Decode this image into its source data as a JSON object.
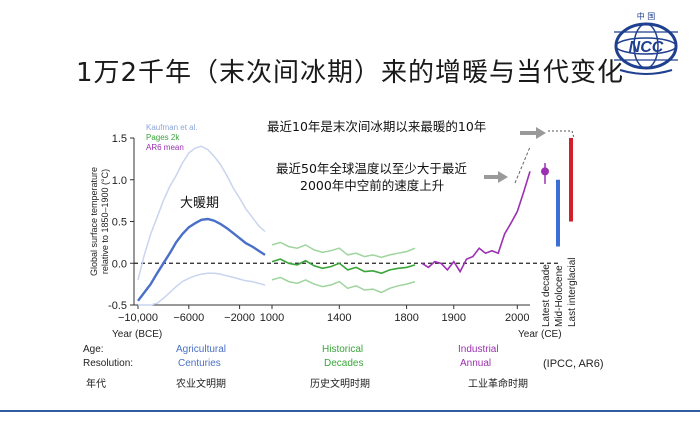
{
  "slide": {
    "title": "1万2千年（末次间冰期）来的增暖与当代变化",
    "logo_text": "NCC",
    "logo_top_text": "中 国"
  },
  "chart_data": {
    "type": "line",
    "ylabel": "Global surface temperature relative to 1850–1900 (°C)",
    "ylim": [
      -0.5,
      1.5
    ],
    "yticks": [
      "1.5",
      "1.0",
      "0.5",
      "0.0",
      "-0.5"
    ],
    "legend": [
      {
        "name": "Kaufman et al.",
        "color": "#8fa6d8"
      },
      {
        "name": "Pages 2k",
        "color": "#3aa53a"
      },
      {
        "name": "AR6 mean",
        "color": "#9b30b0"
      }
    ],
    "panels": [
      {
        "name": "Agricultural Centuries",
        "xlim": [
          -10000,
          0
        ],
        "xticks": [
          "−10,000",
          "−6000",
          "−2000"
        ],
        "xtick_values": [
          -10000,
          -6000,
          -2000
        ],
        "xlabel": "Year (BCE)",
        "resolution": "Agricultural Centuries",
        "era": "农业文明期",
        "series": [
          {
            "name": "Kaufman et al.",
            "x": [
              -10000,
              -9500,
              -9000,
              -8500,
              -8000,
              -7500,
              -7000,
              -6500,
              -6000,
              -5500,
              -5000,
              -4500,
              -4000,
              -3500,
              -3000,
              -2500,
              -2000,
              -1500,
              -1000,
              -500,
              0
            ],
            "mean": [
              -0.45,
              -0.35,
              -0.25,
              -0.12,
              0.0,
              0.12,
              0.25,
              0.35,
              0.43,
              0.48,
              0.52,
              0.53,
              0.51,
              0.47,
              0.42,
              0.36,
              0.3,
              0.24,
              0.2,
              0.15,
              0.1
            ],
            "upper": [
              -0.2,
              0.1,
              0.35,
              0.55,
              0.75,
              0.92,
              1.05,
              1.2,
              1.32,
              1.38,
              1.4,
              1.36,
              1.28,
              1.18,
              1.05,
              0.9,
              0.78,
              0.65,
              0.55,
              0.45,
              0.38
            ],
            "lower": [
              -0.5,
              -0.5,
              -0.5,
              -0.48,
              -0.42,
              -0.35,
              -0.28,
              -0.22,
              -0.18,
              -0.15,
              -0.13,
              -0.12,
              -0.12,
              -0.13,
              -0.15,
              -0.17,
              -0.19,
              -0.21,
              -0.22,
              -0.24,
              -0.26
            ]
          }
        ]
      },
      {
        "name": "Historical Decades",
        "xlim": [
          1000,
          1850
        ],
        "xticks": [
          "1000",
          "1400",
          "1800"
        ],
        "xtick_values": [
          1000,
          1400,
          1800
        ],
        "xlabel": "",
        "resolution": "Historical Decades",
        "era": "历史文明时期",
        "series": [
          {
            "name": "Pages 2k",
            "x": [
              1000,
              1050,
              1100,
              1150,
              1200,
              1250,
              1300,
              1350,
              1400,
              1450,
              1500,
              1550,
              1600,
              1650,
              1700,
              1750,
              1800,
              1850
            ],
            "mean": [
              0.02,
              0.05,
              0.0,
              -0.02,
              0.03,
              -0.03,
              -0.06,
              -0.04,
              0.0,
              -0.08,
              -0.05,
              -0.1,
              -0.09,
              -0.12,
              -0.08,
              -0.06,
              -0.05,
              -0.02
            ],
            "upper": [
              0.22,
              0.25,
              0.2,
              0.18,
              0.22,
              0.16,
              0.13,
              0.15,
              0.18,
              0.1,
              0.12,
              0.08,
              0.1,
              0.07,
              0.1,
              0.12,
              0.14,
              0.18
            ],
            "lower": [
              -0.2,
              -0.17,
              -0.22,
              -0.24,
              -0.2,
              -0.25,
              -0.28,
              -0.26,
              -0.22,
              -0.3,
              -0.27,
              -0.32,
              -0.31,
              -0.35,
              -0.3,
              -0.27,
              -0.25,
              -0.22
            ]
          }
        ]
      },
      {
        "name": "Industrial Annual",
        "xlim": [
          1850,
          2020
        ],
        "xticks": [
          "1900",
          "2000"
        ],
        "xtick_values": [
          1900,
          2000
        ],
        "xlabel": "Year (CE)",
        "resolution": "Industrial Annual",
        "era": "工业革命时期",
        "series": [
          {
            "name": "AR6 mean",
            "x": [
              1850,
              1860,
              1870,
              1880,
              1890,
              1900,
              1910,
              1920,
              1930,
              1940,
              1950,
              1960,
              1970,
              1980,
              1990,
              2000,
              2010,
              2020
            ],
            "mean": [
              0.0,
              -0.05,
              0.02,
              0.0,
              -0.08,
              0.02,
              -0.1,
              0.05,
              0.08,
              0.18,
              0.12,
              0.15,
              0.12,
              0.35,
              0.48,
              0.62,
              0.85,
              1.1
            ]
          }
        ]
      }
    ],
    "side_bars": [
      {
        "name": "Latest decade",
        "value": 1.1,
        "range": [
          0.95,
          1.2
        ],
        "color": "#9b30b0"
      },
      {
        "name": "Mid-Holocene",
        "range": [
          0.2,
          1.0
        ],
        "color": "#3b6fd6"
      },
      {
        "name": "Last interglacial",
        "range": [
          0.5,
          1.5
        ],
        "color": "#d21f2b"
      }
    ],
    "annotations": {
      "warm_period": "大暖期",
      "latest_decade": "最近10年是末次间冰期以来最暖的10年",
      "rate_line1": "最近50年全球温度以至少大于最近",
      "rate_line2": "2000年中空前的速度上升"
    },
    "row_labels": {
      "age": "Age:",
      "resolution": "Resolution:",
      "era": "年代"
    },
    "source": "(IPCC, AR6)"
  },
  "colors": {
    "title": "#1a1a1a",
    "blue_text": "#4a6fc7",
    "green_text": "#3aa53a",
    "purple_text": "#9b30b0",
    "dark_line": "#6b2a8e",
    "accent": "#2e5c9e"
  }
}
